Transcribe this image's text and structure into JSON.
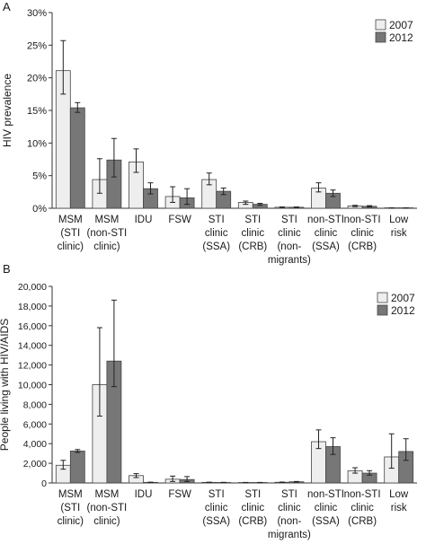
{
  "chart_data": [
    {
      "panel_label": "A",
      "type": "bar",
      "ylabel": "HIV prevalence",
      "ylim": [
        0,
        30
      ],
      "yticks": [
        "0%",
        "5%",
        "10%",
        "15%",
        "20%",
        "25%",
        "30%"
      ],
      "legend_position": "top-right",
      "categories": [
        [
          "MSM",
          "(STI",
          "clinic)"
        ],
        [
          "MSM",
          "(non-STI",
          "clinic)"
        ],
        [
          "IDU"
        ],
        [
          "FSW"
        ],
        [
          "STI",
          "clinic",
          "(SSA)"
        ],
        [
          "STI",
          "clinic",
          "(CRB)"
        ],
        [
          "STI",
          "clinic",
          "(non-",
          "migrants)"
        ],
        [
          "non-STI",
          "clinic",
          "(SSA)"
        ],
        [
          "non-STI",
          "clinic",
          "(CRB)"
        ],
        [
          "Low",
          "risk"
        ]
      ],
      "series": [
        {
          "name": "2007",
          "color": "#eeeeee",
          "values": [
            21.1,
            4.4,
            7.1,
            1.8,
            4.4,
            0.9,
            0.15,
            3.1,
            0.35,
            0.04
          ],
          "error_low": [
            17.5,
            2.3,
            5.5,
            0.9,
            3.6,
            0.6,
            0.1,
            2.5,
            0.25,
            0.02
          ],
          "error_high": [
            25.7,
            7.6,
            9.1,
            3.3,
            5.4,
            1.1,
            0.2,
            3.9,
            0.45,
            0.07
          ]
        },
        {
          "name": "2012",
          "color": "#777777",
          "values": [
            15.4,
            7.4,
            3.0,
            1.6,
            2.6,
            0.6,
            0.15,
            2.3,
            0.3,
            0.04
          ],
          "error_low": [
            14.7,
            4.8,
            2.2,
            0.6,
            2.1,
            0.45,
            0.1,
            1.8,
            0.2,
            0.02
          ],
          "error_high": [
            16.2,
            10.7,
            3.9,
            3.0,
            3.1,
            0.75,
            0.2,
            2.8,
            0.4,
            0.07
          ]
        }
      ]
    },
    {
      "panel_label": "B",
      "type": "bar",
      "ylabel": "People living with HIV/AIDS",
      "ylim": [
        0,
        20000
      ],
      "yticks": [
        "0",
        "2,000",
        "4,000",
        "6,000",
        "8,000",
        "10,000",
        "12,000",
        "14,000",
        "16,000",
        "18,000",
        "20,000"
      ],
      "legend_position": "top-right",
      "categories": [
        [
          "MSM",
          "(STI",
          "clinic)"
        ],
        [
          "MSM",
          "(non-STI",
          "clinic)"
        ],
        [
          "IDU"
        ],
        [
          "FSW"
        ],
        [
          "STI",
          "clinic",
          "(SSA)"
        ],
        [
          "STI",
          "clinic",
          "(CRB)"
        ],
        [
          "STI",
          "clinic",
          "(non-",
          "migrants)"
        ],
        [
          "non-STI",
          "clinic",
          "(SSA)"
        ],
        [
          "non-STI",
          "clinic",
          "(CRB)"
        ],
        [
          "Low",
          "risk"
        ]
      ],
      "series": [
        {
          "name": "2007",
          "color": "#eeeeee",
          "values": [
            1800,
            10000,
            750,
            380,
            60,
            40,
            70,
            4200,
            1250,
            2650
          ],
          "error_low": [
            1400,
            6800,
            550,
            150,
            40,
            25,
            50,
            3500,
            1000,
            1500
          ],
          "error_high": [
            2300,
            15800,
            950,
            700,
            80,
            55,
            90,
            5400,
            1550,
            5000
          ]
        },
        {
          "name": "2012",
          "color": "#777777",
          "values": [
            3250,
            12400,
            60,
            350,
            50,
            40,
            120,
            3700,
            1000,
            3200
          ],
          "error_low": [
            3100,
            9800,
            40,
            150,
            35,
            25,
            90,
            2900,
            800,
            2300
          ],
          "error_high": [
            3400,
            18600,
            80,
            650,
            65,
            55,
            150,
            4600,
            1250,
            4500
          ]
        }
      ]
    }
  ]
}
